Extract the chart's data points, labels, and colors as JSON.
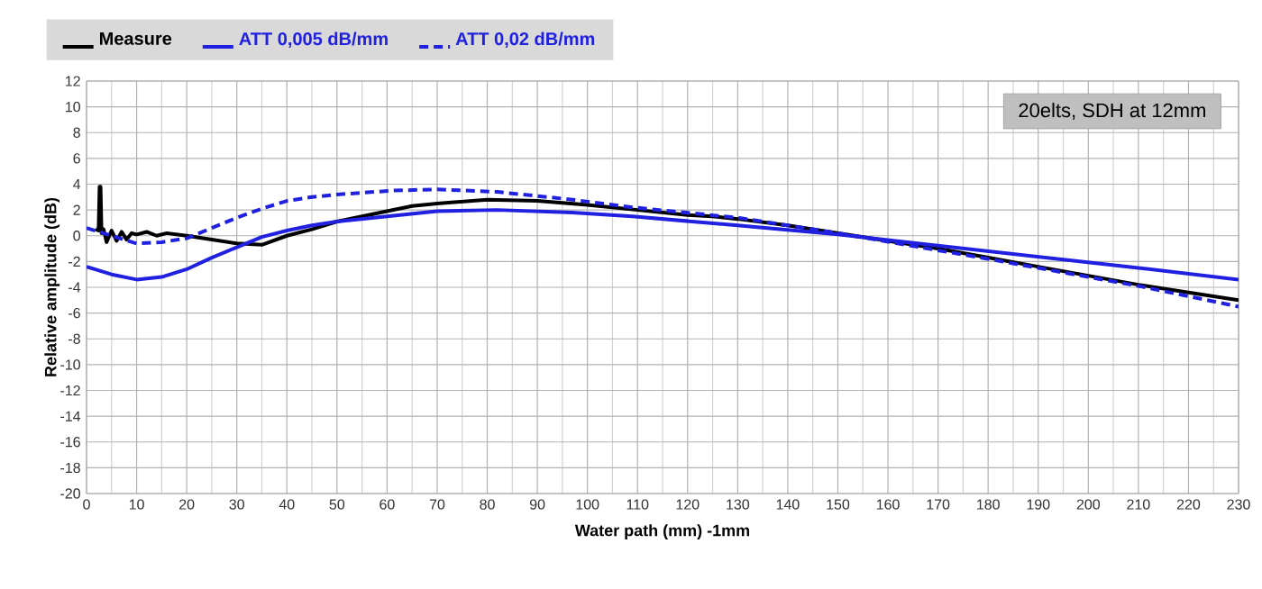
{
  "chart_data": {
    "type": "line",
    "xlabel": "Water path (mm) -1mm",
    "ylabel": "Relative amplitude (dB)",
    "xlim": [
      0,
      230
    ],
    "ylim": [
      -20,
      12
    ],
    "xticks": [
      0,
      10,
      20,
      30,
      40,
      50,
      60,
      70,
      80,
      90,
      100,
      110,
      120,
      130,
      140,
      150,
      160,
      170,
      180,
      190,
      200,
      210,
      220,
      230
    ],
    "yticks": [
      -20,
      -18,
      -16,
      -14,
      -12,
      -10,
      -8,
      -6,
      -4,
      -2,
      0,
      2,
      4,
      6,
      8,
      10,
      12
    ],
    "grid": true,
    "legend": "top left",
    "annotations": [
      "20elts, SDH at 12mm"
    ],
    "series": [
      {
        "name": "Measure",
        "color": "#000000",
        "line_style": "solid",
        "x": [
          1.8,
          2.4,
          2.6,
          2.8,
          3.0,
          3.4,
          4,
          5,
          6,
          7,
          8,
          9,
          10,
          12,
          14,
          16,
          20,
          25,
          30,
          35,
          40,
          45,
          50,
          55,
          60,
          65,
          70,
          80,
          90,
          100,
          110,
          120,
          125,
          130,
          140,
          150,
          160,
          170,
          180,
          190,
          200,
          210,
          220,
          230
        ],
        "values": [
          0.5,
          0.4,
          3.8,
          3.8,
          0.2,
          0.5,
          -0.5,
          0.4,
          -0.4,
          0.3,
          -0.3,
          0.2,
          0.1,
          0.3,
          0.0,
          0.2,
          0.0,
          -0.3,
          -0.6,
          -0.7,
          0.0,
          0.5,
          1.1,
          1.5,
          1.9,
          2.3,
          2.5,
          2.8,
          2.7,
          2.4,
          2.0,
          1.6,
          1.5,
          1.3,
          0.8,
          0.2,
          -0.4,
          -1.0,
          -1.7,
          -2.4,
          -3.1,
          -3.8,
          -4.4,
          -5.0
        ]
      },
      {
        "name": "ATT 0,005 dB/mm",
        "color": "#2020e0",
        "line_style": "solid",
        "x": [
          0,
          5,
          10,
          15,
          20,
          25,
          30,
          35,
          40,
          45,
          50,
          60,
          70,
          82,
          97,
          109,
          130,
          150,
          180,
          210,
          230
        ],
        "values": [
          -2.4,
          -3.0,
          -3.4,
          -3.2,
          -2.6,
          -1.7,
          -0.9,
          -0.1,
          0.4,
          0.8,
          1.1,
          1.5,
          1.9,
          2.0,
          1.8,
          1.5,
          0.8,
          0.1,
          -1.2,
          -2.5,
          -3.4
        ]
      },
      {
        "name": "ATT 0,02 dB/mm",
        "color": "#2020e0",
        "line_style": "dashed",
        "x": [
          0,
          5,
          10,
          15,
          20,
          25,
          30,
          35,
          40,
          45,
          50,
          61,
          70,
          82,
          97,
          109,
          130,
          150,
          180,
          210,
          230
        ],
        "values": [
          0.6,
          0.0,
          -0.6,
          -0.5,
          -0.2,
          0.6,
          1.4,
          2.1,
          2.7,
          3.0,
          3.2,
          3.5,
          3.6,
          3.4,
          2.8,
          2.2,
          1.4,
          0.2,
          -1.8,
          -3.9,
          -5.5
        ]
      }
    ]
  }
}
